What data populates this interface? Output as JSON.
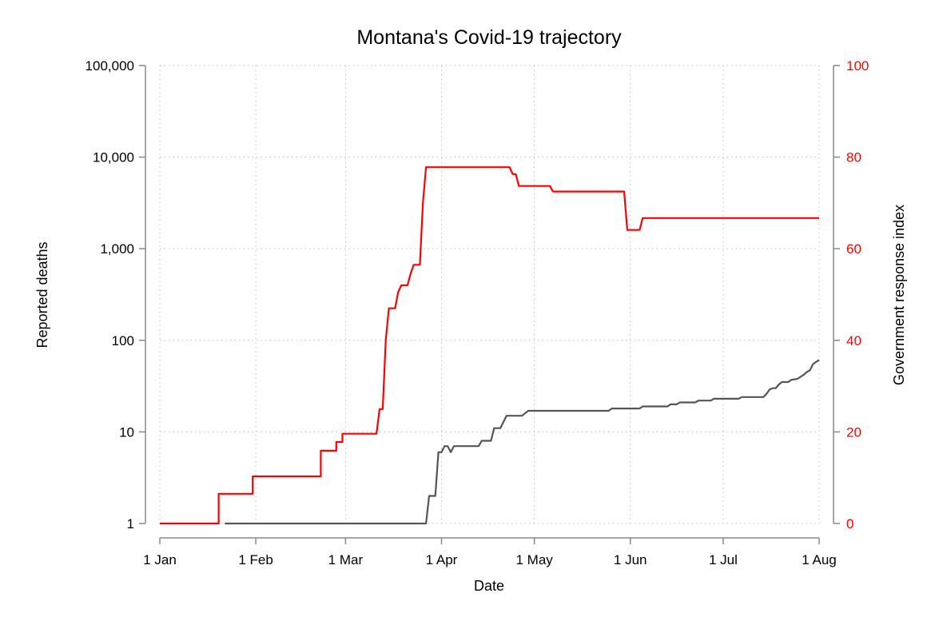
{
  "chart_data": {
    "type": "line",
    "title": "Montana's Covid-19 trajectory",
    "xlabel": "Date",
    "ylabel_left": "Reported deaths",
    "ylabel_right": "Government response index",
    "x_ticks": [
      "1 Jan",
      "1 Feb",
      "1 Mar",
      "1 Apr",
      "1 May",
      "1 Jun",
      "1 Jul",
      "1 Aug"
    ],
    "x_tick_dates": [
      "2020-01-01",
      "2020-02-01",
      "2020-03-01",
      "2020-04-01",
      "2020-05-01",
      "2020-06-01",
      "2020-07-01",
      "2020-08-01"
    ],
    "y_left_scale": "log",
    "y_left_ticks": [
      1,
      10,
      100,
      1000,
      10000,
      100000
    ],
    "y_left_tick_labels": [
      "1",
      "10",
      "100",
      "1,000",
      "10,000",
      "100,000"
    ],
    "y_left_range": [
      1,
      100000
    ],
    "y_right_ticks": [
      0,
      20,
      40,
      60,
      80,
      100
    ],
    "y_right_tick_labels": [
      "0",
      "20",
      "40",
      "60",
      "80",
      "100"
    ],
    "y_right_range": [
      0,
      100
    ],
    "grid": true,
    "colors": {
      "deaths": "#555555",
      "response": "#ff0000",
      "axis": "#888888",
      "right_axis_text": "#ff0000"
    },
    "series": [
      {
        "axis": "left",
        "color": "#555555",
        "points": [
          [
            "2020-01-22",
            1
          ],
          [
            "2020-03-27",
            1
          ],
          [
            "2020-03-28",
            2
          ],
          [
            "2020-03-30",
            2
          ],
          [
            "2020-03-31",
            6
          ],
          [
            "2020-04-01",
            6
          ],
          [
            "2020-04-02",
            7
          ],
          [
            "2020-04-03",
            7
          ],
          [
            "2020-04-04",
            6
          ],
          [
            "2020-04-05",
            7
          ],
          [
            "2020-04-13",
            7
          ],
          [
            "2020-04-14",
            8
          ],
          [
            "2020-04-17",
            8
          ],
          [
            "2020-04-18",
            11
          ],
          [
            "2020-04-20",
            11
          ],
          [
            "2020-04-22",
            15
          ],
          [
            "2020-04-27",
            15
          ],
          [
            "2020-04-29",
            17
          ],
          [
            "2020-05-25",
            17
          ],
          [
            "2020-05-26",
            18
          ],
          [
            "2020-06-04",
            18
          ],
          [
            "2020-06-05",
            19
          ],
          [
            "2020-06-13",
            19
          ],
          [
            "2020-06-14",
            20
          ],
          [
            "2020-06-16",
            20
          ],
          [
            "2020-06-17",
            21
          ],
          [
            "2020-06-22",
            21
          ],
          [
            "2020-06-23",
            22
          ],
          [
            "2020-06-27",
            22
          ],
          [
            "2020-06-28",
            23
          ],
          [
            "2020-07-06",
            23
          ],
          [
            "2020-07-07",
            24
          ],
          [
            "2020-07-14",
            24
          ],
          [
            "2020-07-15",
            26
          ],
          [
            "2020-07-16",
            29
          ],
          [
            "2020-07-17",
            30
          ],
          [
            "2020-07-18",
            30
          ],
          [
            "2020-07-19",
            33
          ],
          [
            "2020-07-20",
            35
          ],
          [
            "2020-07-22",
            35
          ],
          [
            "2020-07-23",
            37
          ],
          [
            "2020-07-25",
            38
          ],
          [
            "2020-07-26",
            40
          ],
          [
            "2020-07-27",
            42
          ],
          [
            "2020-07-28",
            45
          ],
          [
            "2020-07-29",
            47
          ],
          [
            "2020-07-30",
            55
          ],
          [
            "2020-07-31",
            58
          ],
          [
            "2020-08-01",
            61
          ]
        ]
      },
      {
        "axis": "right",
        "color": "#ff0000",
        "points": [
          [
            "2020-01-01",
            0
          ],
          [
            "2020-01-20",
            0
          ],
          [
            "2020-01-20",
            6.5
          ],
          [
            "2020-01-31",
            6.5
          ],
          [
            "2020-01-31",
            10.3
          ],
          [
            "2020-02-22",
            10.3
          ],
          [
            "2020-02-22",
            15.9
          ],
          [
            "2020-02-27",
            15.9
          ],
          [
            "2020-02-27",
            17.8
          ],
          [
            "2020-02-29",
            17.8
          ],
          [
            "2020-02-29",
            19.6
          ],
          [
            "2020-03-11",
            19.6
          ],
          [
            "2020-03-12",
            25
          ],
          [
            "2020-03-13",
            25
          ],
          [
            "2020-03-14",
            40
          ],
          [
            "2020-03-15",
            47
          ],
          [
            "2020-03-17",
            47
          ],
          [
            "2020-03-18",
            50.5
          ],
          [
            "2020-03-19",
            52
          ],
          [
            "2020-03-21",
            52
          ],
          [
            "2020-03-22",
            54.5
          ],
          [
            "2020-03-23",
            56.5
          ],
          [
            "2020-03-25",
            56.5
          ],
          [
            "2020-03-26",
            70
          ],
          [
            "2020-03-27",
            77.8
          ],
          [
            "2020-04-23",
            77.8
          ],
          [
            "2020-04-24",
            76.3
          ],
          [
            "2020-04-25",
            76.3
          ],
          [
            "2020-04-26",
            73.7
          ],
          [
            "2020-05-06",
            73.7
          ],
          [
            "2020-05-07",
            72.5
          ],
          [
            "2020-05-30",
            72.5
          ],
          [
            "2020-05-31",
            64.1
          ],
          [
            "2020-06-04",
            64.1
          ],
          [
            "2020-06-05",
            66.7
          ],
          [
            "2020-08-01",
            66.7
          ]
        ]
      }
    ]
  }
}
